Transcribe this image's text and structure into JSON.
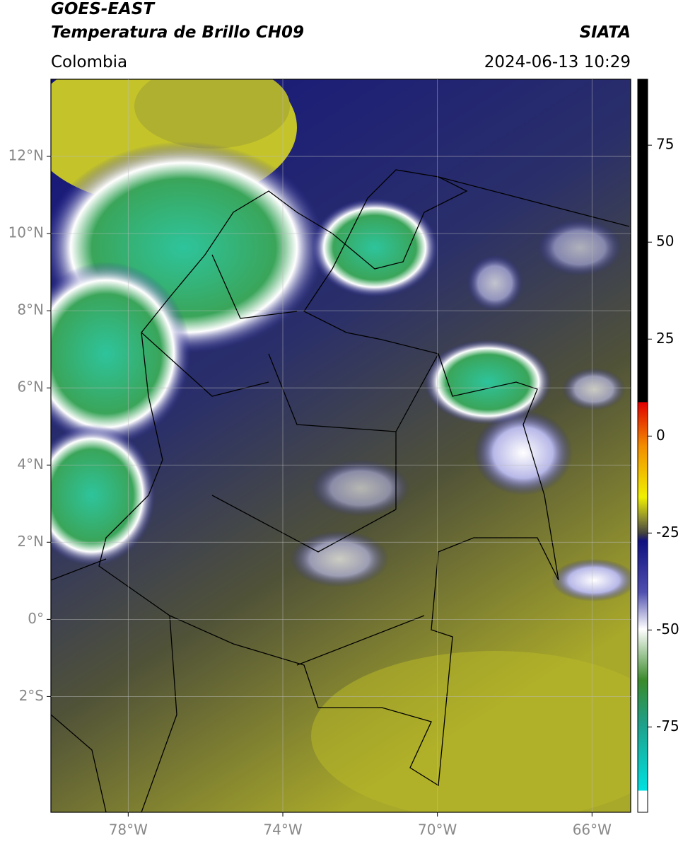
{
  "header": {
    "title_line1": "GOES-EAST",
    "title_line2": "Temperatura de Brillo CH09",
    "source": "SIATA",
    "region": "Colombia",
    "datetime": "2024-06-13 10:29"
  },
  "map": {
    "xlim": [
      -80,
      -65
    ],
    "ylim": [
      -5,
      14
    ],
    "xticks": [
      {
        "value": -78,
        "label": "78°W"
      },
      {
        "value": -74,
        "label": "74°W"
      },
      {
        "value": -70,
        "label": "70°W"
      },
      {
        "value": -66,
        "label": "66°W"
      }
    ],
    "yticks": [
      {
        "value": 12,
        "label": "12°N"
      },
      {
        "value": 10,
        "label": "10°N"
      },
      {
        "value": 8,
        "label": "8°N"
      },
      {
        "value": 6,
        "label": "6°N"
      },
      {
        "value": 4,
        "label": "4°N"
      },
      {
        "value": 2,
        "label": "2°N"
      },
      {
        "value": 0,
        "label": "0°"
      },
      {
        "value": -2,
        "label": "2°S"
      }
    ]
  },
  "colorbar": {
    "lim": [
      -97,
      92
    ],
    "ticks": [
      75,
      50,
      25,
      0,
      -25,
      -50,
      -75
    ]
  }
}
